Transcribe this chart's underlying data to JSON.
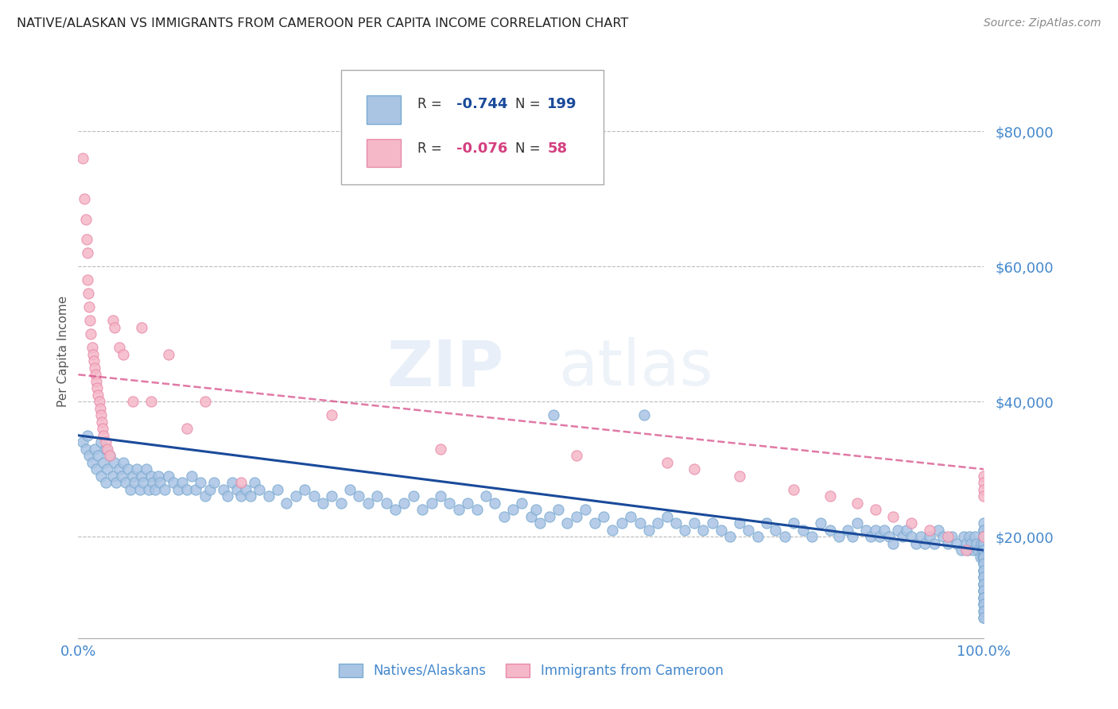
{
  "title": "NATIVE/ALASKAN VS IMMIGRANTS FROM CAMEROON PER CAPITA INCOME CORRELATION CHART",
  "source": "Source: ZipAtlas.com",
  "ylabel": "Per Capita Income",
  "ymin": 5000,
  "ymax": 90000,
  "xmin": 0.0,
  "xmax": 1.0,
  "watermark_zip": "ZIP",
  "watermark_atlas": "atlas",
  "blue_R": -0.744,
  "blue_N": 199,
  "pink_R": -0.076,
  "pink_N": 58,
  "blue_color": "#aac4e4",
  "blue_edge": "#7aaad0",
  "pink_color": "#f5b8c8",
  "pink_edge": "#e88aaa",
  "blue_line_color": "#1a4a9a",
  "pink_line_color": "#d44080",
  "legend_label_blue": "Natives/Alaskans",
  "legend_label_pink": "Immigrants from Cameroon",
  "title_color": "#222222",
  "axis_label_color": "#4488cc",
  "grid_color": "#bbbbbb",
  "background_color": "#ffffff",
  "blue_x": [
    0.005,
    0.008,
    0.01,
    0.012,
    0.015,
    0.018,
    0.02,
    0.022,
    0.025,
    0.025,
    0.028,
    0.03,
    0.03,
    0.032,
    0.035,
    0.038,
    0.04,
    0.042,
    0.045,
    0.048,
    0.05,
    0.052,
    0.055,
    0.058,
    0.06,
    0.062,
    0.065,
    0.068,
    0.07,
    0.072,
    0.075,
    0.078,
    0.08,
    0.082,
    0.085,
    0.088,
    0.09,
    0.095,
    0.1,
    0.105,
    0.11,
    0.115,
    0.12,
    0.125,
    0.13,
    0.135,
    0.14,
    0.145,
    0.15,
    0.16,
    0.165,
    0.17,
    0.175,
    0.18,
    0.185,
    0.19,
    0.195,
    0.2,
    0.21,
    0.22,
    0.23,
    0.24,
    0.25,
    0.26,
    0.27,
    0.28,
    0.29,
    0.3,
    0.31,
    0.32,
    0.33,
    0.34,
    0.35,
    0.36,
    0.37,
    0.38,
    0.39,
    0.4,
    0.41,
    0.42,
    0.43,
    0.44,
    0.45,
    0.46,
    0.47,
    0.48,
    0.49,
    0.5,
    0.505,
    0.51,
    0.52,
    0.525,
    0.53,
    0.54,
    0.55,
    0.56,
    0.57,
    0.58,
    0.59,
    0.6,
    0.61,
    0.62,
    0.625,
    0.63,
    0.64,
    0.65,
    0.66,
    0.67,
    0.68,
    0.69,
    0.7,
    0.71,
    0.72,
    0.73,
    0.74,
    0.75,
    0.76,
    0.77,
    0.78,
    0.79,
    0.8,
    0.81,
    0.82,
    0.83,
    0.84,
    0.85,
    0.855,
    0.86,
    0.87,
    0.875,
    0.88,
    0.885,
    0.89,
    0.895,
    0.9,
    0.905,
    0.91,
    0.915,
    0.92,
    0.925,
    0.93,
    0.935,
    0.94,
    0.945,
    0.95,
    0.955,
    0.96,
    0.965,
    0.97,
    0.975,
    0.978,
    0.98,
    0.982,
    0.984,
    0.986,
    0.988,
    0.99,
    0.992,
    0.994,
    0.996,
    0.997,
    0.998,
    0.999,
    1.0,
    1.0,
    1.0,
    1.0,
    1.0,
    1.0,
    1.0,
    1.0,
    1.0,
    1.0,
    1.0,
    1.0,
    1.0,
    1.0,
    1.0,
    1.0,
    1.0,
    1.0,
    1.0,
    1.0,
    1.0,
    1.0,
    1.0,
    1.0,
    1.0,
    1.0,
    1.0,
    1.0,
    1.0,
    1.0,
    1.0,
    1.0,
    1.0,
    1.0,
    1.0,
    1.0
  ],
  "blue_y": [
    34000,
    33000,
    35000,
    32000,
    31000,
    33000,
    30000,
    32000,
    34000,
    29000,
    31000,
    33000,
    28000,
    30000,
    32000,
    29000,
    31000,
    28000,
    30000,
    29000,
    31000,
    28000,
    30000,
    27000,
    29000,
    28000,
    30000,
    27000,
    29000,
    28000,
    30000,
    27000,
    29000,
    28000,
    27000,
    29000,
    28000,
    27000,
    29000,
    28000,
    27000,
    28000,
    27000,
    29000,
    27000,
    28000,
    26000,
    27000,
    28000,
    27000,
    26000,
    28000,
    27000,
    26000,
    27000,
    26000,
    28000,
    27000,
    26000,
    27000,
    25000,
    26000,
    27000,
    26000,
    25000,
    26000,
    25000,
    27000,
    26000,
    25000,
    26000,
    25000,
    24000,
    25000,
    26000,
    24000,
    25000,
    26000,
    25000,
    24000,
    25000,
    24000,
    26000,
    25000,
    23000,
    24000,
    25000,
    23000,
    24000,
    22000,
    23000,
    38000,
    24000,
    22000,
    23000,
    24000,
    22000,
    23000,
    21000,
    22000,
    23000,
    22000,
    38000,
    21000,
    22000,
    23000,
    22000,
    21000,
    22000,
    21000,
    22000,
    21000,
    20000,
    22000,
    21000,
    20000,
    22000,
    21000,
    20000,
    22000,
    21000,
    20000,
    22000,
    21000,
    20000,
    21000,
    20000,
    22000,
    21000,
    20000,
    21000,
    20000,
    21000,
    20000,
    19000,
    21000,
    20000,
    21000,
    20000,
    19000,
    20000,
    19000,
    20000,
    19000,
    21000,
    20000,
    19000,
    20000,
    19000,
    18000,
    20000,
    19000,
    18000,
    20000,
    19000,
    18000,
    20000,
    19000,
    18000,
    17000,
    19000,
    18000,
    17000,
    16000,
    15000,
    14000,
    13000,
    12000,
    11000,
    10000,
    21000,
    20000,
    19000,
    18000,
    17000,
    16000,
    15000,
    14000,
    13000,
    12000,
    22000,
    21000,
    20000,
    19000,
    18000,
    17000,
    16000,
    15000,
    14000,
    13000,
    12000,
    11000,
    10000,
    9000,
    8000,
    11000,
    10000,
    9000,
    8000
  ],
  "pink_x": [
    0.005,
    0.007,
    0.008,
    0.009,
    0.01,
    0.01,
    0.011,
    0.012,
    0.013,
    0.014,
    0.015,
    0.016,
    0.017,
    0.018,
    0.019,
    0.02,
    0.021,
    0.022,
    0.023,
    0.024,
    0.025,
    0.026,
    0.027,
    0.028,
    0.03,
    0.032,
    0.035,
    0.038,
    0.04,
    0.045,
    0.05,
    0.06,
    0.07,
    0.08,
    0.1,
    0.12,
    0.14,
    0.18,
    0.28,
    0.4,
    0.55,
    0.65,
    0.68,
    0.73,
    0.79,
    0.83,
    0.86,
    0.88,
    0.9,
    0.92,
    0.94,
    0.96,
    0.98,
    1.0,
    1.0,
    1.0,
    1.0,
    1.0
  ],
  "pink_y": [
    76000,
    70000,
    67000,
    64000,
    62000,
    58000,
    56000,
    54000,
    52000,
    50000,
    48000,
    47000,
    46000,
    45000,
    44000,
    43000,
    42000,
    41000,
    40000,
    39000,
    38000,
    37000,
    36000,
    35000,
    34000,
    33000,
    32000,
    52000,
    51000,
    48000,
    47000,
    40000,
    51000,
    40000,
    47000,
    36000,
    40000,
    28000,
    38000,
    33000,
    32000,
    31000,
    30000,
    29000,
    27000,
    26000,
    25000,
    24000,
    23000,
    22000,
    21000,
    20000,
    18000,
    29000,
    28000,
    27000,
    26000,
    20000
  ]
}
